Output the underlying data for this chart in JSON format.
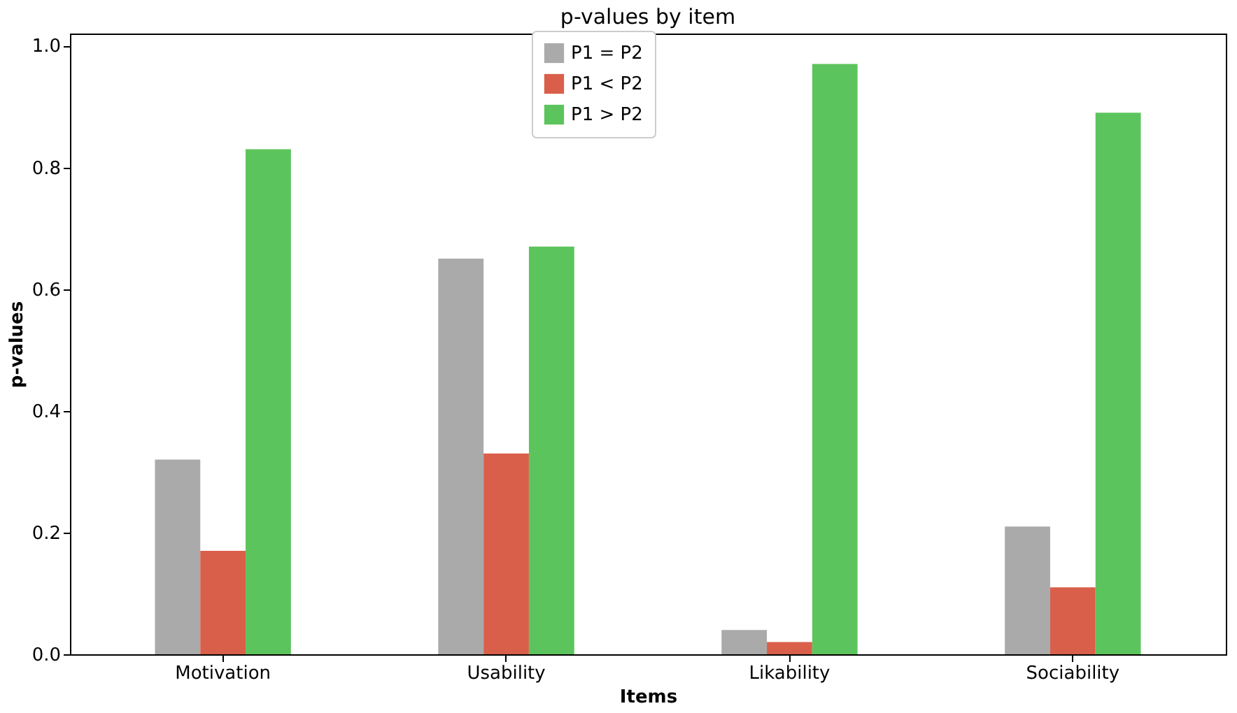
{
  "chart_data": {
    "type": "bar",
    "title": "p-values by item",
    "xlabel": "Items",
    "ylabel": "p-values",
    "categories": [
      "Motivation",
      "Usability",
      "Likability",
      "Sociability"
    ],
    "series": [
      {
        "name": "P1 = P2",
        "color": "#aaaaaa",
        "values": [
          0.32,
          0.65,
          0.04,
          0.21
        ]
      },
      {
        "name": "P1 < P2",
        "color": "#d95f4a",
        "values": [
          0.17,
          0.33,
          0.02,
          0.11
        ]
      },
      {
        "name": "P1 > P2",
        "color": "#5cc45c",
        "values": [
          0.83,
          0.67,
          0.97,
          0.89
        ]
      }
    ],
    "ylim": [
      0,
      1.02
    ],
    "yticks": [
      {
        "value": 0,
        "label": "0.0"
      },
      {
        "value": 0.2,
        "label": "0.2"
      },
      {
        "value": 0.4,
        "label": "0.4"
      },
      {
        "value": 0.6,
        "label": "0.6"
      },
      {
        "value": 0.8,
        "label": "0.8"
      },
      {
        "value": 1.0,
        "label": "1.0"
      }
    ],
    "grid": false,
    "legend": "top"
  }
}
